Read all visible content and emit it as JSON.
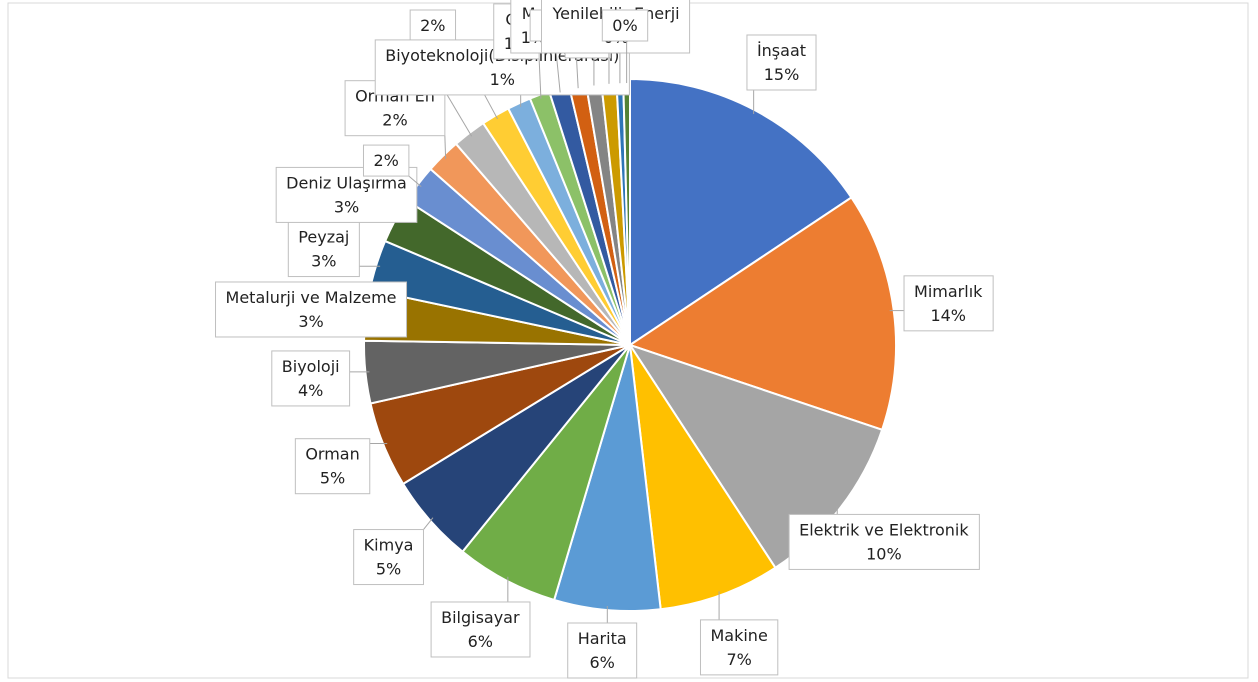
{
  "chart_data": {
    "type": "pie",
    "categories": [
      "İnşaat",
      "Mimarlık",
      "Elektrik ve Elektronik",
      "Makine",
      "Harita",
      "Bilgisayar",
      "Kimya",
      "Orman",
      "Biyoloji",
      "Metalurji ve Malzeme",
      "Peyzaj",
      "Deniz Ulaşırma",
      null,
      "Orman En",
      null,
      null,
      "Biyoteknoloji(Disiplinlerarası)",
      "Ge",
      "Mo",
      null,
      null,
      null,
      "Yenilebilir Enerji",
      null
    ],
    "values": [
      15.3,
      14.2,
      10.4,
      7.2,
      6.3,
      6.1,
      5.3,
      5.1,
      3.7,
      3.0,
      3.0,
      2.7,
      2.3,
      2.1,
      2.0,
      1.7,
      1.4,
      1.2,
      1.2,
      1.0,
      0.9,
      0.9,
      0.4,
      0.4
    ],
    "value_labels": [
      "15%",
      "14%",
      "10%",
      "7%",
      "6%",
      "6%",
      "5%",
      "5%",
      "4%",
      "3%",
      "3%",
      "3%",
      "2%",
      "2%",
      "2%",
      "2%",
      "1%",
      "1%",
      "1%",
      "1%",
      "1%",
      "1%",
      "0%",
      "0%"
    ],
    "colors": [
      "#4472c4",
      "#ed7d31",
      "#a5a5a5",
      "#ffc000",
      "#5b9bd5",
      "#70ad47",
      "#264478",
      "#9e480e",
      "#636363",
      "#997300",
      "#255e91",
      "#43682b",
      "#698ed0",
      "#f1975a",
      "#b7b7b7",
      "#ffcd33",
      "#7cafdd",
      "#8cc168",
      "#335aa1",
      "#d26012",
      "#848484",
      "#cc9a00",
      "#2e75b6",
      "#548235"
    ]
  }
}
